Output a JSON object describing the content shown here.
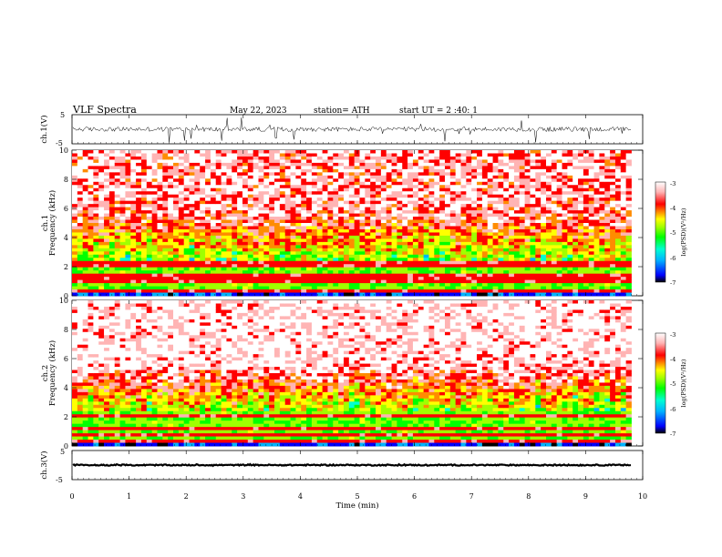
{
  "header": {
    "title": "VLF  Spectra",
    "date": "May 22, 2023",
    "station": "station= ATH",
    "start": "start  UT  =    2  :40: 1"
  },
  "chart_data": [
    {
      "type": "line",
      "name": "ch1-waveform",
      "ylabel": "ch.1(V)",
      "ylim": [
        -5,
        5
      ],
      "yticks": [
        "5",
        "-5"
      ],
      "xlim": [
        0,
        10
      ],
      "data_end_min": 9.8,
      "baseline": 0,
      "envelope": {
        "typical_amplitude": 0.8,
        "max_spike": 5
      }
    },
    {
      "type": "heatmap",
      "name": "ch1-spectrogram",
      "ylabel": "ch.1\nFrequency (kHz)",
      "ylim": [
        0,
        10
      ],
      "yticks": [
        "0",
        "2",
        "4",
        "6",
        "8",
        "10"
      ],
      "xlim": [
        0,
        10
      ],
      "data_end_min": 9.8,
      "zlabel": "log(PSD)(V²/Hz)",
      "zlim": [
        -7,
        -3
      ],
      "zticks": [
        "-3",
        "-4",
        "-5",
        "-6",
        "-7"
      ],
      "profile": {
        "bands_khz": [
          0.2,
          0.9,
          1.3,
          2.0,
          2.2
        ]
      }
    },
    {
      "type": "heatmap",
      "name": "ch2-spectrogram",
      "ylabel": "ch.2\nFrequency (kHz)",
      "ylim": [
        0,
        10
      ],
      "yticks": [
        "0",
        "2",
        "4",
        "6",
        "8",
        "10"
      ],
      "xlim": [
        0,
        10
      ],
      "data_end_min": 9.8,
      "zlabel": "log(PSD)(V²/Hz)",
      "zlim": [
        -7,
        -3
      ],
      "zticks": [
        "-3",
        "-4",
        "-5",
        "-6",
        "-7"
      ],
      "profile": {
        "bands_khz": [
          0.3,
          0.8,
          1.2,
          2.0,
          2.1
        ]
      }
    },
    {
      "type": "line",
      "name": "ch3-waveform",
      "ylabel": "ch.3(V)",
      "ylim": [
        -5,
        5
      ],
      "yticks": [
        "5",
        "-5"
      ],
      "xlim": [
        0,
        10
      ],
      "data_end_min": 9.8,
      "baseline": 0,
      "envelope": {
        "typical_amplitude": 0.2,
        "max_spike": 0.3
      }
    }
  ],
  "x_axis": {
    "label": "Time  (min)",
    "ticks": [
      "0",
      "1",
      "2",
      "3",
      "4",
      "5",
      "6",
      "7",
      "8",
      "9",
      "10"
    ]
  },
  "colormap": [
    "#000000",
    "#0000ff",
    "#00b4ff",
    "#00ffd2",
    "#00ff00",
    "#a0ff00",
    "#ffff00",
    "#ff8c00",
    "#ff0000",
    "#ffb4b4",
    "#ffffff"
  ]
}
